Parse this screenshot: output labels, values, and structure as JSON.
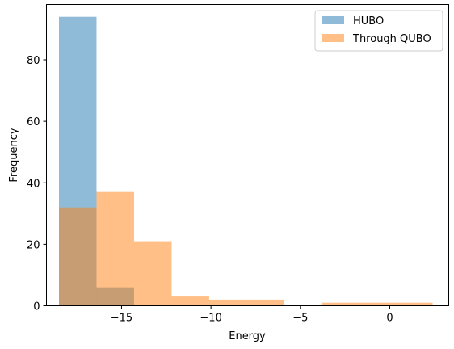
{
  "chart_data": {
    "type": "bar",
    "xlabel": "Energy",
    "ylabel": "Frequency",
    "xlim": [
      -19.2,
      3.3
    ],
    "ylim": [
      0,
      98
    ],
    "grid": false,
    "legend_placement": "top-right",
    "x_ticks": [
      {
        "value": -15,
        "label": "−15"
      },
      {
        "value": -10,
        "label": "−10"
      },
      {
        "value": -5,
        "label": "−5"
      },
      {
        "value": 0,
        "label": "0"
      }
    ],
    "y_ticks": [
      {
        "value": 0,
        "label": "0"
      },
      {
        "value": 20,
        "label": "20"
      },
      {
        "value": 40,
        "label": "40"
      },
      {
        "value": 60,
        "label": "60"
      },
      {
        "value": 80,
        "label": "80"
      }
    ],
    "series": [
      {
        "name": "HUBO",
        "color": "#1f77b4",
        "alpha": 0.5,
        "bins": [
          {
            "x0": -18.5,
            "x1": -16.4,
            "count": 94
          },
          {
            "x0": -16.4,
            "x1": -14.3,
            "count": 6
          }
        ]
      },
      {
        "name": "Through QUBO",
        "color": "#ff7f0e",
        "alpha": 0.5,
        "bins": [
          {
            "x0": -18.5,
            "x1": -16.4,
            "count": 32
          },
          {
            "x0": -16.4,
            "x1": -14.3,
            "count": 37
          },
          {
            "x0": -14.3,
            "x1": -12.2,
            "count": 21
          },
          {
            "x0": -12.2,
            "x1": -10.1,
            "count": 3
          },
          {
            "x0": -10.1,
            "x1": -8.0,
            "count": 2
          },
          {
            "x0": -8.0,
            "x1": -5.9,
            "count": 2
          },
          {
            "x0": -5.9,
            "x1": -3.8,
            "count": 0
          },
          {
            "x0": -3.8,
            "x1": -1.7,
            "count": 1
          },
          {
            "x0": -1.7,
            "x1": 0.4,
            "count": 1
          },
          {
            "x0": 0.4,
            "x1": 2.4,
            "count": 1
          }
        ]
      }
    ]
  }
}
